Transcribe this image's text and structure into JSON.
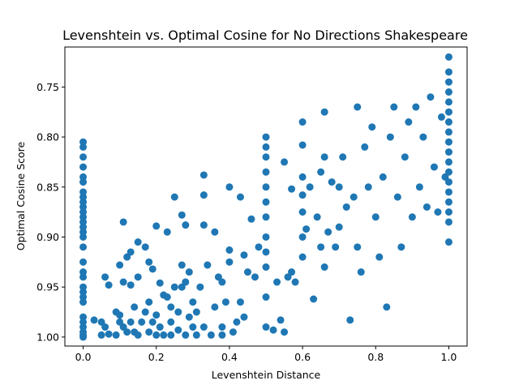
{
  "chart_data": {
    "type": "scatter",
    "title": "Levenshtein vs. Optimal Cosine for No Directions Shakespeare",
    "xlabel": "Levenshtein Distance",
    "ylabel": "Optimal Cosine Score",
    "xlim": [
      -0.05,
      1.05
    ],
    "ylim": [
      1.009,
      0.71
    ],
    "y_inverted": true,
    "xticks": [
      0.0,
      0.2,
      0.4,
      0.6,
      0.8,
      1.0
    ],
    "xtick_labels": [
      "0.0",
      "0.2",
      "0.4",
      "0.6",
      "0.8",
      "1.0"
    ],
    "yticks": [
      0.75,
      0.8,
      0.85,
      0.9,
      0.95,
      1.0
    ],
    "ytick_labels": [
      "0.75",
      "0.80",
      "0.85",
      "0.90",
      "0.95",
      "1.00"
    ],
    "grid": false,
    "marker_color": "#1f77b4",
    "series": [
      {
        "points": [
          [
            0.0,
            1.0
          ],
          [
            0.0,
            0.998
          ],
          [
            0.0,
            0.995
          ],
          [
            0.0,
            0.99
          ],
          [
            0.0,
            0.985
          ],
          [
            0.0,
            0.98
          ],
          [
            0.0,
            0.965
          ],
          [
            0.0,
            0.96
          ],
          [
            0.0,
            0.955
          ],
          [
            0.0,
            0.95
          ],
          [
            0.0,
            0.94
          ],
          [
            0.0,
            0.935
          ],
          [
            0.0,
            0.925
          ],
          [
            0.0,
            0.91
          ],
          [
            0.0,
            0.9
          ],
          [
            0.0,
            0.895
          ],
          [
            0.0,
            0.89
          ],
          [
            0.0,
            0.885
          ],
          [
            0.0,
            0.88
          ],
          [
            0.0,
            0.875
          ],
          [
            0.0,
            0.87
          ],
          [
            0.0,
            0.865
          ],
          [
            0.0,
            0.86
          ],
          [
            0.0,
            0.855
          ],
          [
            0.0,
            0.845
          ],
          [
            0.0,
            0.84
          ],
          [
            0.0,
            0.83
          ],
          [
            0.0,
            0.82
          ],
          [
            0.0,
            0.81
          ],
          [
            0.0,
            0.805
          ],
          [
            0.03,
            0.983
          ],
          [
            0.05,
            0.985
          ],
          [
            0.05,
            0.998
          ],
          [
            0.06,
            0.94
          ],
          [
            0.06,
            0.99
          ],
          [
            0.07,
            0.948
          ],
          [
            0.07,
            0.997
          ],
          [
            0.09,
            0.975
          ],
          [
            0.09,
            0.998
          ],
          [
            0.1,
            0.978
          ],
          [
            0.1,
            0.985
          ],
          [
            0.1,
            0.928
          ],
          [
            0.11,
            0.945
          ],
          [
            0.11,
            0.99
          ],
          [
            0.11,
            0.885
          ],
          [
            0.12,
            0.92
          ],
          [
            0.12,
            0.995
          ],
          [
            0.13,
            0.948
          ],
          [
            0.13,
            0.985
          ],
          [
            0.13,
            0.915
          ],
          [
            0.14,
            0.97
          ],
          [
            0.14,
            0.995
          ],
          [
            0.15,
            0.905
          ],
          [
            0.15,
            0.94
          ],
          [
            0.15,
            0.998
          ],
          [
            0.16,
            0.985
          ],
          [
            0.17,
            0.975
          ],
          [
            0.17,
            0.91
          ],
          [
            0.18,
            0.925
          ],
          [
            0.18,
            0.965
          ],
          [
            0.18,
            0.995
          ],
          [
            0.19,
            0.932
          ],
          [
            0.19,
            0.985
          ],
          [
            0.2,
            0.978
          ],
          [
            0.2,
            0.998
          ],
          [
            0.2,
            0.889
          ],
          [
            0.21,
            0.946
          ],
          [
            0.21,
            0.99
          ],
          [
            0.22,
            0.958
          ],
          [
            0.22,
            0.998
          ],
          [
            0.23,
            0.895
          ],
          [
            0.23,
            0.96
          ],
          [
            0.24,
            0.985
          ],
          [
            0.24,
            0.97
          ],
          [
            0.24,
            0.998
          ],
          [
            0.25,
            0.95
          ],
          [
            0.25,
            0.86
          ],
          [
            0.26,
            0.993
          ],
          [
            0.26,
            0.975
          ],
          [
            0.27,
            0.928
          ],
          [
            0.27,
            0.95
          ],
          [
            0.27,
            0.878
          ],
          [
            0.28,
            0.998
          ],
          [
            0.28,
            0.945
          ],
          [
            0.28,
            0.888
          ],
          [
            0.29,
            0.98
          ],
          [
            0.29,
            0.935
          ],
          [
            0.3,
            0.99
          ],
          [
            0.3,
            0.965
          ],
          [
            0.31,
            0.975
          ],
          [
            0.31,
            0.998
          ],
          [
            0.32,
            0.95
          ],
          [
            0.33,
            0.99
          ],
          [
            0.33,
            0.838
          ],
          [
            0.33,
            0.858
          ],
          [
            0.33,
            0.888
          ],
          [
            0.34,
            0.928
          ],
          [
            0.35,
            0.998
          ],
          [
            0.36,
            0.97
          ],
          [
            0.36,
            0.895
          ],
          [
            0.37,
            0.94
          ],
          [
            0.38,
            0.998
          ],
          [
            0.38,
            0.945
          ],
          [
            0.38,
            0.99
          ],
          [
            0.39,
            0.965
          ],
          [
            0.4,
            0.925
          ],
          [
            0.4,
            0.85
          ],
          [
            0.4,
            0.913
          ],
          [
            0.41,
            0.995
          ],
          [
            0.42,
            0.985
          ],
          [
            0.43,
            0.86
          ],
          [
            0.43,
            0.965
          ],
          [
            0.44,
            0.918
          ],
          [
            0.44,
            0.98
          ],
          [
            0.45,
            0.935
          ],
          [
            0.46,
            0.882
          ],
          [
            0.47,
            0.94
          ],
          [
            0.48,
            0.91
          ],
          [
            0.5,
            0.8
          ],
          [
            0.5,
            0.81
          ],
          [
            0.5,
            0.82
          ],
          [
            0.5,
            0.835
          ],
          [
            0.5,
            0.85
          ],
          [
            0.5,
            0.865
          ],
          [
            0.5,
            0.88
          ],
          [
            0.5,
            0.9
          ],
          [
            0.5,
            0.915
          ],
          [
            0.5,
            0.93
          ],
          [
            0.5,
            0.96
          ],
          [
            0.5,
            0.99
          ],
          [
            0.52,
            0.993
          ],
          [
            0.53,
            0.945
          ],
          [
            0.54,
            0.983
          ],
          [
            0.55,
            0.825
          ],
          [
            0.55,
            0.995
          ],
          [
            0.56,
            0.94
          ],
          [
            0.57,
            0.935
          ],
          [
            0.57,
            0.852
          ],
          [
            0.58,
            0.945
          ],
          [
            0.6,
            0.785
          ],
          [
            0.6,
            0.808
          ],
          [
            0.6,
            0.84
          ],
          [
            0.6,
            0.858
          ],
          [
            0.6,
            0.875
          ],
          [
            0.6,
            0.9
          ],
          [
            0.6,
            0.92
          ],
          [
            0.61,
            0.892
          ],
          [
            0.62,
            0.85
          ],
          [
            0.63,
            0.962
          ],
          [
            0.64,
            0.88
          ],
          [
            0.65,
            0.91
          ],
          [
            0.65,
            0.835
          ],
          [
            0.66,
            0.775
          ],
          [
            0.66,
            0.82
          ],
          [
            0.66,
            0.93
          ],
          [
            0.67,
            0.895
          ],
          [
            0.68,
            0.845
          ],
          [
            0.69,
            0.91
          ],
          [
            0.7,
            0.85
          ],
          [
            0.7,
            0.89
          ],
          [
            0.71,
            0.82
          ],
          [
            0.72,
            0.87
          ],
          [
            0.73,
            0.983
          ],
          [
            0.74,
            0.86
          ],
          [
            0.75,
            0.77
          ],
          [
            0.75,
            0.91
          ],
          [
            0.76,
            0.935
          ],
          [
            0.77,
            0.81
          ],
          [
            0.78,
            0.85
          ],
          [
            0.79,
            0.79
          ],
          [
            0.8,
            0.88
          ],
          [
            0.81,
            0.92
          ],
          [
            0.82,
            0.84
          ],
          [
            0.83,
            0.97
          ],
          [
            0.84,
            0.8
          ],
          [
            0.85,
            0.77
          ],
          [
            0.86,
            0.86
          ],
          [
            0.87,
            0.91
          ],
          [
            0.88,
            0.82
          ],
          [
            0.89,
            0.785
          ],
          [
            0.9,
            0.88
          ],
          [
            0.91,
            0.77
          ],
          [
            0.92,
            0.85
          ],
          [
            0.93,
            0.8
          ],
          [
            0.94,
            0.87
          ],
          [
            0.95,
            0.76
          ],
          [
            0.96,
            0.83
          ],
          [
            0.97,
            0.875
          ],
          [
            0.98,
            0.78
          ],
          [
            0.99,
            0.84
          ],
          [
            1.0,
            0.72
          ],
          [
            1.0,
            0.735
          ],
          [
            1.0,
            0.745
          ],
          [
            1.0,
            0.755
          ],
          [
            1.0,
            0.765
          ],
          [
            1.0,
            0.775
          ],
          [
            1.0,
            0.785
          ],
          [
            1.0,
            0.795
          ],
          [
            1.0,
            0.805
          ],
          [
            1.0,
            0.815
          ],
          [
            1.0,
            0.825
          ],
          [
            1.0,
            0.835
          ],
          [
            1.0,
            0.845
          ],
          [
            1.0,
            0.855
          ],
          [
            1.0,
            0.865
          ],
          [
            1.0,
            0.875
          ],
          [
            1.0,
            0.885
          ],
          [
            1.0,
            0.905
          ]
        ]
      }
    ]
  }
}
